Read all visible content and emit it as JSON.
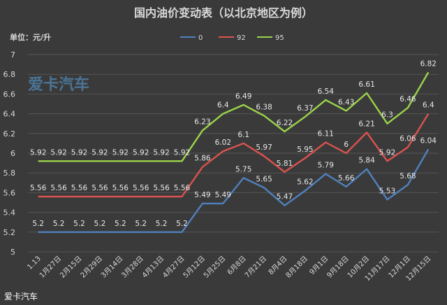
{
  "chart_data": {
    "type": "line",
    "title": "国内油价变动表（以北京地区为例）",
    "unit_label": "单位：元/升",
    "categories": [
      "1.13",
      "1月27日",
      "2月15日",
      "2月29日",
      "3月14日",
      "3月28日",
      "4月13日",
      "4月27日",
      "5月12日",
      "5月25日",
      "6月8日",
      "7月21日",
      "8月4日",
      "8月18日",
      "9月1日",
      "9月18日",
      "10月2日",
      "11月17日",
      "12月1日",
      "12月15日"
    ],
    "series": [
      {
        "name": "0",
        "color": "#4f81bd",
        "values": [
          5.2,
          5.2,
          5.2,
          5.2,
          5.2,
          5.2,
          5.2,
          5.2,
          5.49,
          5.49,
          5.75,
          5.65,
          5.47,
          5.62,
          5.79,
          5.66,
          5.84,
          5.53,
          5.68,
          6.04
        ]
      },
      {
        "name": "92",
        "color": "#d9534f",
        "values": [
          5.56,
          5.56,
          5.56,
          5.56,
          5.56,
          5.56,
          5.56,
          5.56,
          5.86,
          6.02,
          6.1,
          5.97,
          5.81,
          5.95,
          6.11,
          6.0,
          6.21,
          5.92,
          6.06,
          6.4
        ]
      },
      {
        "name": "95",
        "color": "#9bd34a",
        "values": [
          5.92,
          5.92,
          5.92,
          5.92,
          5.92,
          5.92,
          5.92,
          5.92,
          6.23,
          6.4,
          6.49,
          6.38,
          6.22,
          6.37,
          6.54,
          6.43,
          6.61,
          6.3,
          6.46,
          6.82
        ]
      }
    ],
    "data_labels": [
      [
        "5.2",
        "5.2",
        "5.2",
        "5.2",
        "5.2",
        "5.2",
        "5.2",
        "5.2",
        "5.49",
        "5.49",
        "5.75",
        "5.65",
        "5.47",
        "5.62",
        "5.79",
        "5.66",
        "5.84",
        "5.53",
        "5.68",
        "6.04"
      ],
      [
        "5.56",
        "5.56",
        "5.56",
        "5.56",
        "5.56",
        "5.56",
        "5.56",
        "5.56",
        "5.86",
        "6.02",
        "6.1",
        "5.97",
        "5.81",
        "5.95",
        "6.11",
        "6",
        "6.21",
        "5.92",
        "6.06",
        "6.4"
      ],
      [
        "5.92",
        "5.92",
        "5.92",
        "5.92",
        "5.92",
        "5.92",
        "5.92",
        "5.92",
        "6.23",
        "6.4",
        "6.49",
        "6.38",
        "6.22",
        "6.37",
        "6.54",
        "6.43",
        "6.61",
        "6.3",
        "6.46",
        "6.82"
      ]
    ],
    "ylim": [
      5,
      7
    ],
    "yticks": [
      5,
      5.2,
      5.4,
      5.6,
      5.8,
      6,
      6.2,
      6.4,
      6.6,
      6.8,
      7
    ],
    "ytick_labels": [
      "5",
      "5.2",
      "5.4",
      "5.6",
      "5.8",
      "6",
      "6.2",
      "6.4",
      "6.6",
      "6.8",
      "7"
    ],
    "grid": true,
    "legend_position": "top"
  },
  "watermark": "爱卡汽车",
  "brand": "爱卡汽车"
}
